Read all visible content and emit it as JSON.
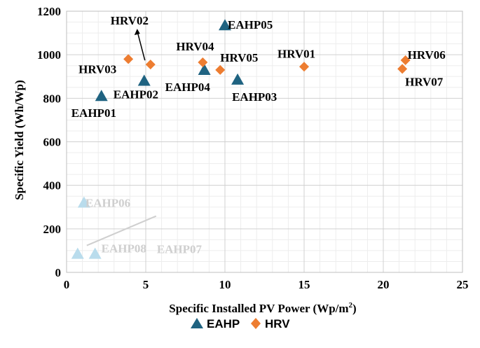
{
  "chart_data": {
    "type": "scatter",
    "xlabel": "Specific Installed PV Power (Wp/m",
    "xlabel_sup": "2",
    "xlabel_end": ")",
    "ylabel": "Specific Yield (Wh/Wp)",
    "xlim": [
      0,
      25
    ],
    "ylim": [
      0,
      1200
    ],
    "x_ticks": [
      "0",
      "5",
      "10",
      "15",
      "20",
      "25"
    ],
    "y_ticks": [
      "0",
      "200",
      "400",
      "600",
      "800",
      "1000",
      "1200"
    ],
    "grid": "minor-and-major",
    "legend_position": "bottom",
    "colors": {
      "EAHP": "#1f6381",
      "EAHP_faded": "#b9dcec",
      "HRV": "#ed7d31",
      "leader": "#000000",
      "leader_faded": "#cfcfcf"
    },
    "legend": [
      {
        "name": "EAHP",
        "marker": "triangle"
      },
      {
        "name": "HRV",
        "marker": "diamond"
      }
    ],
    "series": [
      {
        "name": "EAHP",
        "marker": "triangle",
        "points": [
          {
            "label": "EAHP01",
            "x": 2.2,
            "y": 810
          },
          {
            "label": "EAHP02",
            "x": 4.9,
            "y": 880
          },
          {
            "label": "EAHP03",
            "x": 10.8,
            "y": 885
          },
          {
            "label": "EAHP04",
            "x": 8.7,
            "y": 930
          },
          {
            "label": "EAHP05",
            "x": 10.0,
            "y": 1135
          },
          {
            "label": "EAHP06",
            "x": 1.1,
            "y": 320,
            "faded": true
          },
          {
            "label": "EAHP07",
            "x": 0.7,
            "y": 85,
            "faded": true
          },
          {
            "label": "EAHP08",
            "x": 1.8,
            "y": 85,
            "faded": true
          }
        ]
      },
      {
        "name": "HRV",
        "marker": "diamond",
        "points": [
          {
            "label": "HRV01",
            "x": 15.0,
            "y": 945
          },
          {
            "label": "HRV02",
            "x": 5.3,
            "y": 955
          },
          {
            "label": "HRV03",
            "x": 3.9,
            "y": 980
          },
          {
            "label": "HRV04",
            "x": 8.6,
            "y": 965
          },
          {
            "label": "HRV05",
            "x": 9.7,
            "y": 930
          },
          {
            "label": "HRV06",
            "x": 21.4,
            "y": 975
          },
          {
            "label": "HRV07",
            "x": 21.2,
            "y": 935
          }
        ]
      }
    ]
  }
}
